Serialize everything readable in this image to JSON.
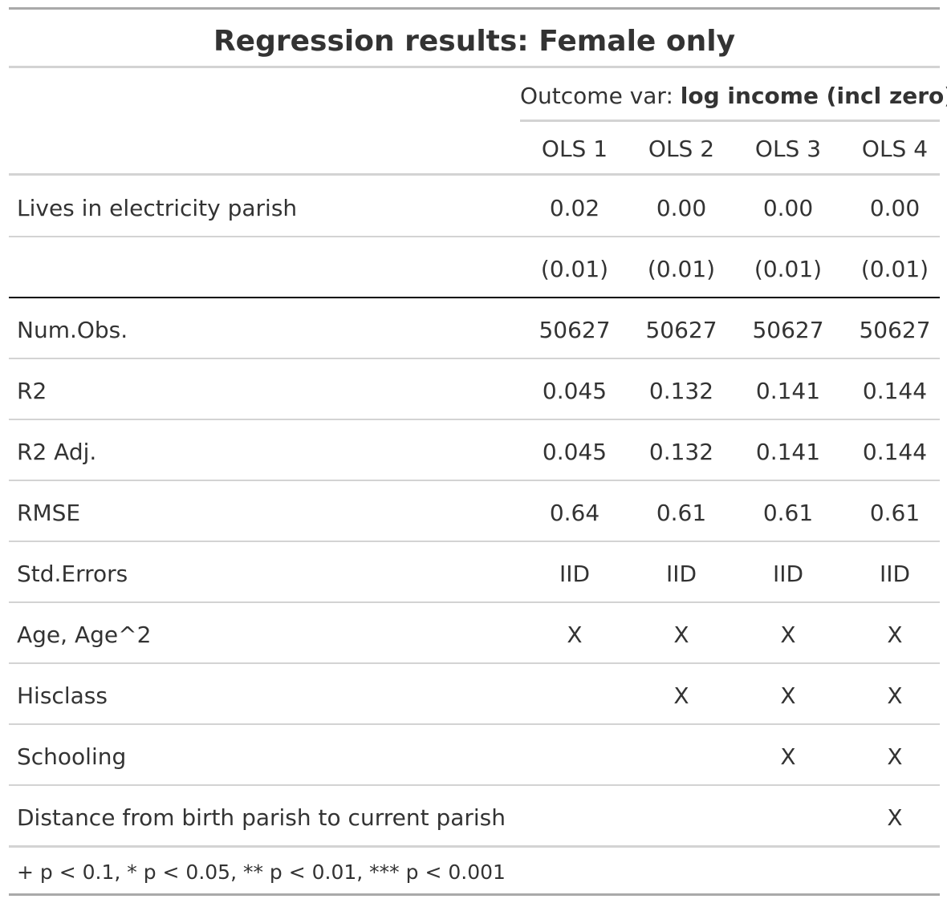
{
  "title": "Regression results: Female only",
  "spanner": {
    "prefix": "Outcome var: ",
    "bold": "log income (incl zero)"
  },
  "columns": [
    "OLS 1",
    "OLS 2",
    "OLS 3",
    "OLS 4"
  ],
  "rows": [
    {
      "label": "Lives in electricity parish",
      "values": [
        "0.02",
        "0.00",
        "0.00",
        "0.00"
      ]
    },
    {
      "label": "",
      "values": [
        "(0.01)",
        "(0.01)",
        "(0.01)",
        "(0.01)"
      ]
    },
    {
      "label": "Num.Obs.",
      "values": [
        "50627",
        "50627",
        "50627",
        "50627"
      ]
    },
    {
      "label": "R2",
      "values": [
        "0.045",
        "0.132",
        "0.141",
        "0.144"
      ]
    },
    {
      "label": "R2 Adj.",
      "values": [
        "0.045",
        "0.132",
        "0.141",
        "0.144"
      ]
    },
    {
      "label": "RMSE",
      "values": [
        "0.64",
        "0.61",
        "0.61",
        "0.61"
      ]
    },
    {
      "label": "Std.Errors",
      "values": [
        "IID",
        "IID",
        "IID",
        "IID"
      ]
    },
    {
      "label": "Age, Age^2",
      "values": [
        "X",
        "X",
        "X",
        "X"
      ]
    },
    {
      "label": "Hisclass",
      "values": [
        "",
        "X",
        "X",
        "X"
      ]
    },
    {
      "label": "Schooling",
      "values": [
        "",
        "",
        "X",
        "X"
      ]
    },
    {
      "label": "Distance from birth parish to current parish",
      "values": [
        "",
        "",
        "",
        "X"
      ]
    }
  ],
  "footnote": "+ p < 0.1, * p < 0.05, ** p < 0.01, *** p < 0.001"
}
